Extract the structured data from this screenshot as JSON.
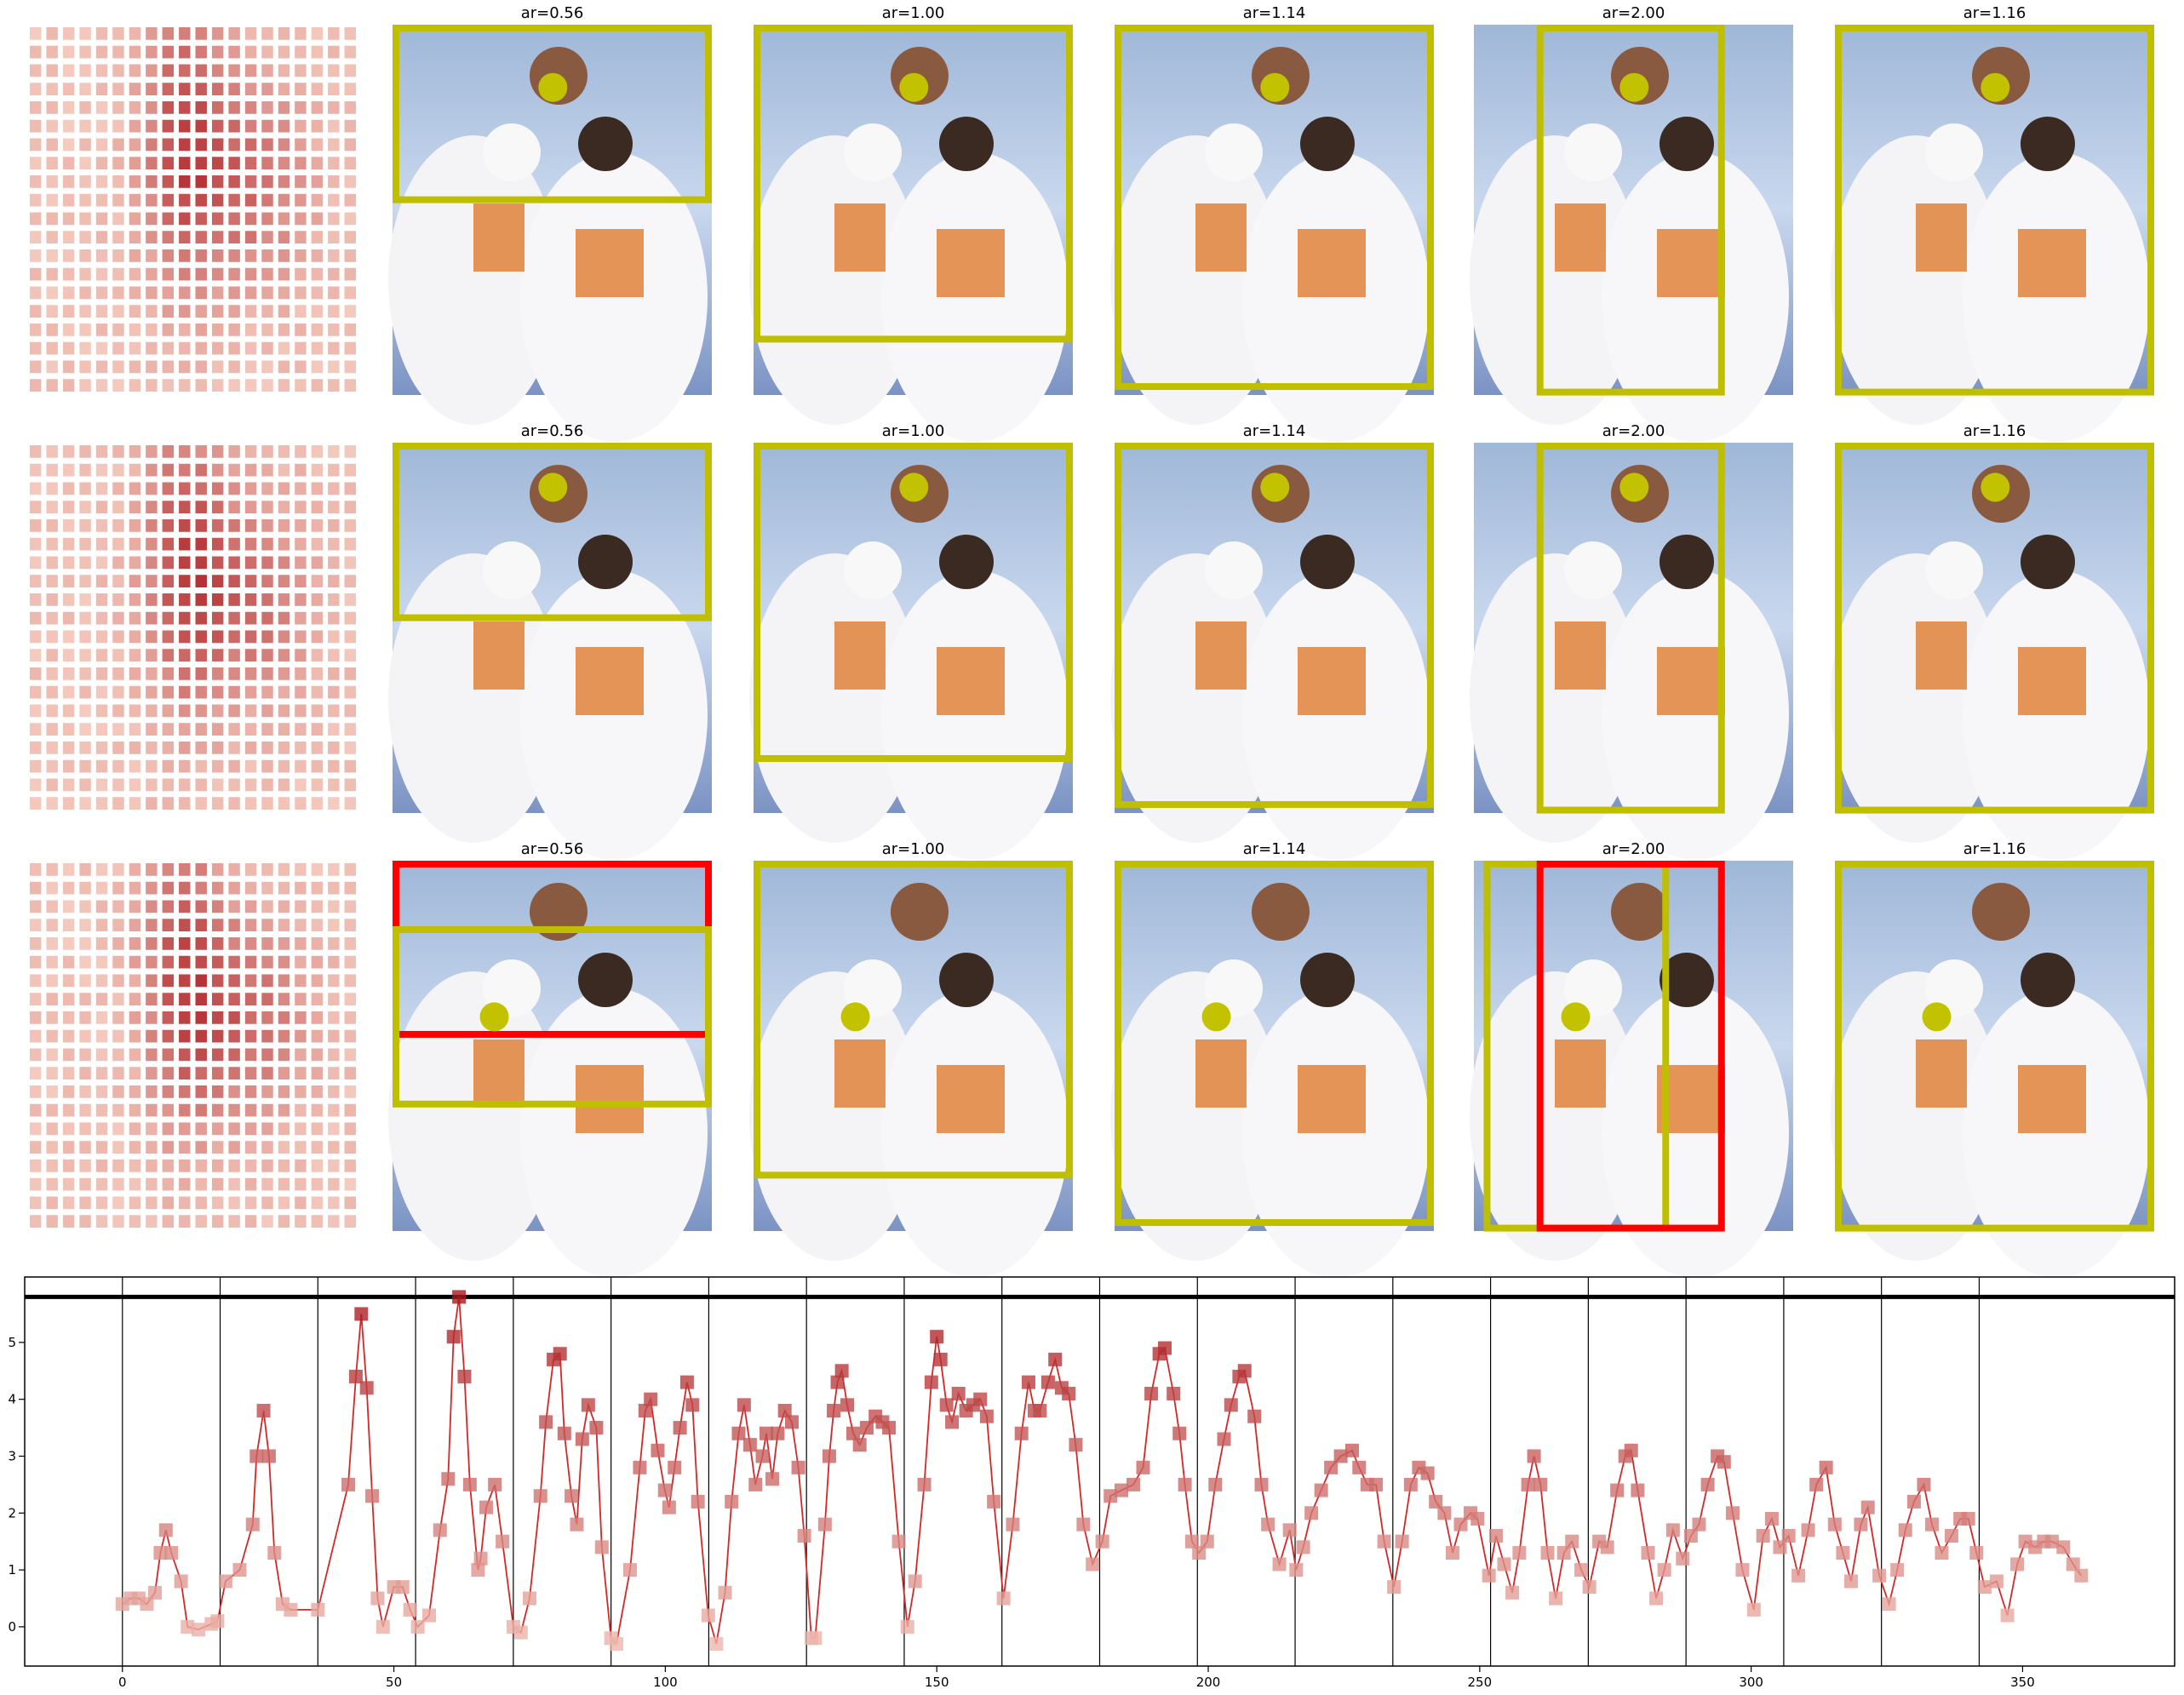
{
  "grid": {
    "rows": [
      [
        "ar=0.56",
        "ar=1.00",
        "ar=1.14",
        "ar=2.00",
        "ar=1.16"
      ],
      [
        "ar=0.56",
        "ar=1.00",
        "ar=1.14",
        "ar=2.00",
        "ar=1.16"
      ],
      [
        "ar=0.56",
        "ar=1.00",
        "ar=1.14",
        "ar=2.00",
        "ar=1.16"
      ]
    ]
  },
  "chart_data": {
    "type": "line",
    "x": [
      0,
      1.5,
      3,
      4.5,
      6,
      7,
      8,
      9,
      10.8,
      12,
      14,
      16.4,
      17.5,
      19,
      21.6,
      24,
      24.7,
      26,
      27,
      28,
      29.5,
      31,
      36,
      41.6,
      43,
      44,
      45,
      46,
      47,
      48,
      50,
      51.6,
      53,
      54.4,
      56.5,
      58.5,
      60,
      61,
      62,
      63,
      64,
      65.5,
      66,
      67,
      68.6,
      70,
      72,
      73.4,
      75,
      77,
      78,
      79.4,
      80.6,
      81.4,
      82.7,
      83.7,
      84.7,
      85.8,
      87.3,
      88.3,
      90,
      91,
      93.5,
      95.3,
      96.3,
      97.3,
      98.6,
      99.9,
      100.7,
      101.7,
      102.7,
      104,
      105,
      106,
      107.9,
      109.4,
      111,
      112.2,
      113.5,
      114.5,
      115.6,
      116.6,
      117.9,
      118.6,
      119.7,
      120.7,
      122,
      123.3,
      124.5,
      125.6,
      126.9,
      127.6,
      129.4,
      130.2,
      131,
      131.7,
      132.5,
      133.5,
      134.6,
      135.8,
      137.1,
      138.7,
      140,
      141.2,
      143,
      144.6,
      146,
      147.7,
      149,
      150,
      150.7,
      151.8,
      152.8,
      154,
      155.4,
      156.7,
      158,
      159.2,
      160.5,
      162.3,
      164,
      165.6,
      166.9,
      168,
      169,
      170.5,
      171.8,
      173,
      174.3,
      175.6,
      177,
      178.7,
      180.5,
      182,
      184,
      186.2,
      188,
      189.5,
      191,
      192,
      193.6,
      194.7,
      195.7,
      197,
      198.3,
      199.8,
      201.3,
      202.9,
      204.2,
      205.7,
      206.7,
      208.5,
      209.8,
      211,
      213.1,
      215,
      216.2,
      217.5,
      219,
      220.8,
      222.6,
      224.4,
      226.5,
      227.8,
      229.3,
      230.9,
      232.4,
      234.2,
      235.7,
      237.3,
      238.8,
      240.4,
      241.9,
      243.5,
      245,
      246.5,
      248.3,
      249.6,
      251.7,
      253,
      254.5,
      256,
      257.3,
      258.9,
      260,
      261.2,
      262.5,
      264,
      265.5,
      267,
      268.7,
      270.2,
      272,
      273.5,
      275.3,
      276.8,
      277.9,
      279.1,
      281,
      282.5,
      284,
      285.6,
      287.4,
      288.9,
      290.4,
      292,
      293.8,
      295,
      296.6,
      298.4,
      300.5,
      302.2,
      303.8,
      305.3,
      306.9,
      308.7,
      310.5,
      312,
      313.8,
      315.4,
      316.9,
      318.4,
      320.2,
      321.5,
      323.6,
      325.4,
      326.9,
      328.4,
      330,
      331.8,
      333.3,
      335.1,
      336.9,
      338.5,
      340,
      341.5,
      343,
      345.2,
      347.2,
      349,
      350.5,
      352.3,
      353.9,
      355.4,
      357.5,
      359.3,
      360.8
    ],
    "values": [
      0.4,
      0.5,
      0.5,
      0.4,
      0.6,
      1.3,
      1.7,
      1.3,
      0.8,
      0,
      -0.05,
      0.05,
      0.1,
      0.8,
      1.0,
      1.8,
      3.0,
      3.8,
      3.0,
      1.3,
      0.4,
      0.3,
      0.3,
      2.5,
      4.4,
      5.5,
      4.2,
      2.3,
      0.5,
      0,
      0.7,
      0.7,
      0.3,
      0,
      0.2,
      1.7,
      2.6,
      5.1,
      5.8,
      4.4,
      2.5,
      1.0,
      1.2,
      2.1,
      2.5,
      1.5,
      0,
      -0.1,
      0.5,
      2.3,
      3.6,
      4.7,
      4.8,
      3.4,
      2.3,
      1.8,
      3.3,
      3.9,
      3.5,
      1.4,
      -0.2,
      -0.3,
      1.0,
      2.8,
      3.8,
      4.0,
      3.1,
      2.4,
      2.1,
      2.8,
      3.5,
      4.3,
      3.9,
      2.2,
      0.2,
      -0.3,
      0.6,
      2.2,
      3.4,
      3.9,
      3.2,
      2.5,
      3.0,
      3.4,
      2.6,
      3.4,
      3.8,
      3.6,
      2.8,
      1.6,
      -0.2,
      -0.2,
      1.8,
      3.0,
      3.8,
      4.3,
      4.5,
      3.9,
      3.4,
      3.2,
      3.5,
      3.7,
      3.6,
      3.5,
      1.5,
      0.0,
      0.8,
      2.5,
      4.3,
      5.1,
      4.7,
      3.9,
      3.6,
      4.1,
      3.8,
      3.9,
      4.0,
      3.7,
      2.2,
      0.5,
      1.8,
      3.4,
      4.3,
      3.8,
      3.8,
      4.3,
      4.7,
      4.2,
      4.1,
      3.2,
      1.8,
      1.1,
      1.5,
      2.3,
      2.4,
      2.5,
      2.8,
      4.1,
      4.8,
      4.9,
      4.1,
      3.4,
      2.5,
      1.5,
      1.3,
      1.5,
      2.5,
      3.3,
      3.9,
      4.4,
      4.5,
      3.7,
      2.5,
      1.8,
      1.1,
      1.7,
      1.0,
      1.4,
      2.0,
      2.4,
      2.8,
      3.0,
      3.1,
      2.8,
      2.5,
      2.5,
      1.5,
      0.7,
      1.5,
      2.5,
      2.8,
      2.7,
      2.2,
      2.0,
      1.3,
      1.8,
      2.0,
      1.9,
      0.9,
      1.6,
      1.1,
      0.6,
      1.3,
      2.5,
      3.0,
      2.5,
      1.3,
      0.5,
      1.3,
      1.5,
      1.0,
      0.7,
      1.5,
      1.4,
      2.4,
      3.0,
      3.1,
      2.4,
      1.3,
      0.5,
      1.0,
      1.7,
      1.2,
      1.6,
      1.8,
      2.5,
      3.0,
      2.9,
      2.0,
      1.0,
      0.3,
      1.6,
      1.9,
      1.4,
      1.6,
      0.9,
      1.7,
      2.5,
      2.8,
      1.8,
      1.3,
      0.8,
      1.8,
      2.1,
      0.9,
      0.4,
      1.0,
      1.7,
      2.2,
      2.5,
      1.8,
      1.3,
      1.6,
      1.9,
      1.9,
      1.3,
      0.7,
      0.8,
      0.2,
      1.1,
      1.5,
      1.4,
      1.5,
      1.5,
      1.4,
      1.1,
      0.9
    ],
    "color": "#d62728",
    "xlim": [
      -18,
      378
    ],
    "ylim": [
      -0.69,
      6.15
    ],
    "xticks": [
      0,
      50,
      100,
      150,
      200,
      250,
      300,
      350
    ],
    "yticks": [
      0,
      1,
      2,
      3,
      4,
      5
    ],
    "vlines": [
      0,
      18,
      36,
      54,
      72,
      90,
      108,
      126,
      144,
      162,
      180,
      198,
      216,
      234,
      252,
      270,
      288,
      306,
      324,
      342
    ],
    "hline": 5.8
  }
}
